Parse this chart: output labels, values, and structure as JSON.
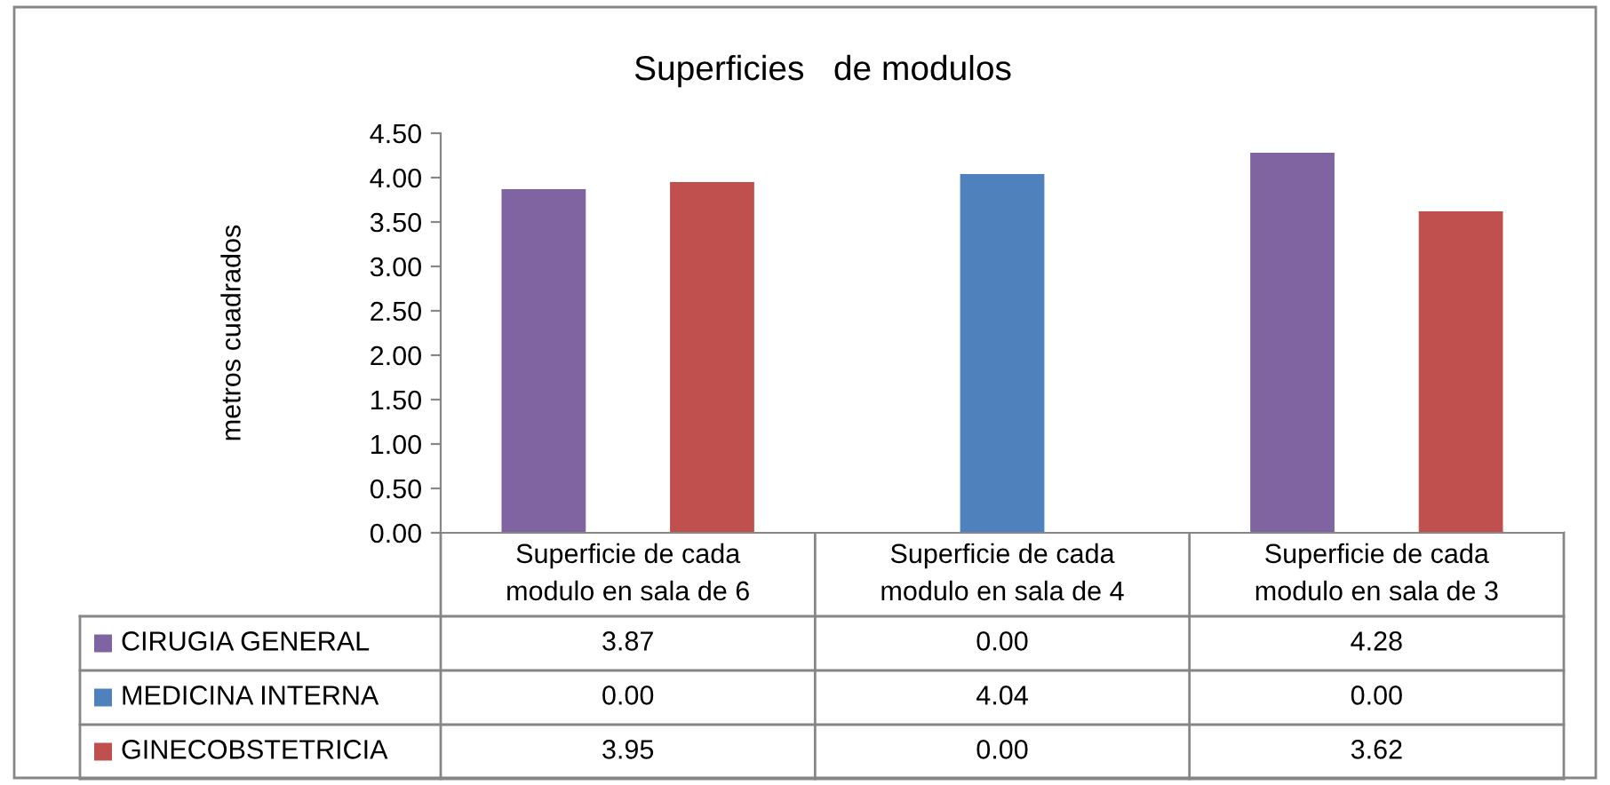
{
  "chart_data": {
    "type": "bar",
    "title": "Superficies   de modulos",
    "ylabel": "metros cuadrados",
    "categories": [
      "Superficie de cada modulo en sala de 6",
      "Superficie de cada modulo en sala de 4",
      "Superficie de cada modulo en sala de 3"
    ],
    "series": [
      {
        "name": "CIRUGIA GENERAL",
        "color": "#8064a2",
        "values": [
          3.87,
          0.0,
          4.28
        ],
        "value_labels": [
          "3.87",
          "0.00",
          "4.28"
        ]
      },
      {
        "name": "MEDICINA INTERNA",
        "color": "#4f81bd",
        "values": [
          0.0,
          4.04,
          0.0
        ],
        "value_labels": [
          "0.00",
          "4.04",
          "0.00"
        ]
      },
      {
        "name": "GINECOBSTETRICIA",
        "color": "#c0504d",
        "values": [
          3.95,
          0.0,
          3.62
        ],
        "value_labels": [
          "3.95",
          "0.00",
          "3.62"
        ]
      }
    ],
    "ylim": [
      0,
      4.5
    ],
    "yticks": [
      {
        "value": 0,
        "label": "0.00"
      },
      {
        "value": 0.5,
        "label": "0.50"
      },
      {
        "value": 1,
        "label": "1.00"
      },
      {
        "value": 1.5,
        "label": "1.50"
      },
      {
        "value": 2,
        "label": "2.00"
      },
      {
        "value": 2.5,
        "label": "2.50"
      },
      {
        "value": 3,
        "label": "3.00"
      },
      {
        "value": 3.5,
        "label": "3.50"
      },
      {
        "value": 4,
        "label": "4.00"
      },
      {
        "value": 4.5,
        "label": "4.50"
      }
    ],
    "grid": false,
    "legend": "bottom left"
  }
}
